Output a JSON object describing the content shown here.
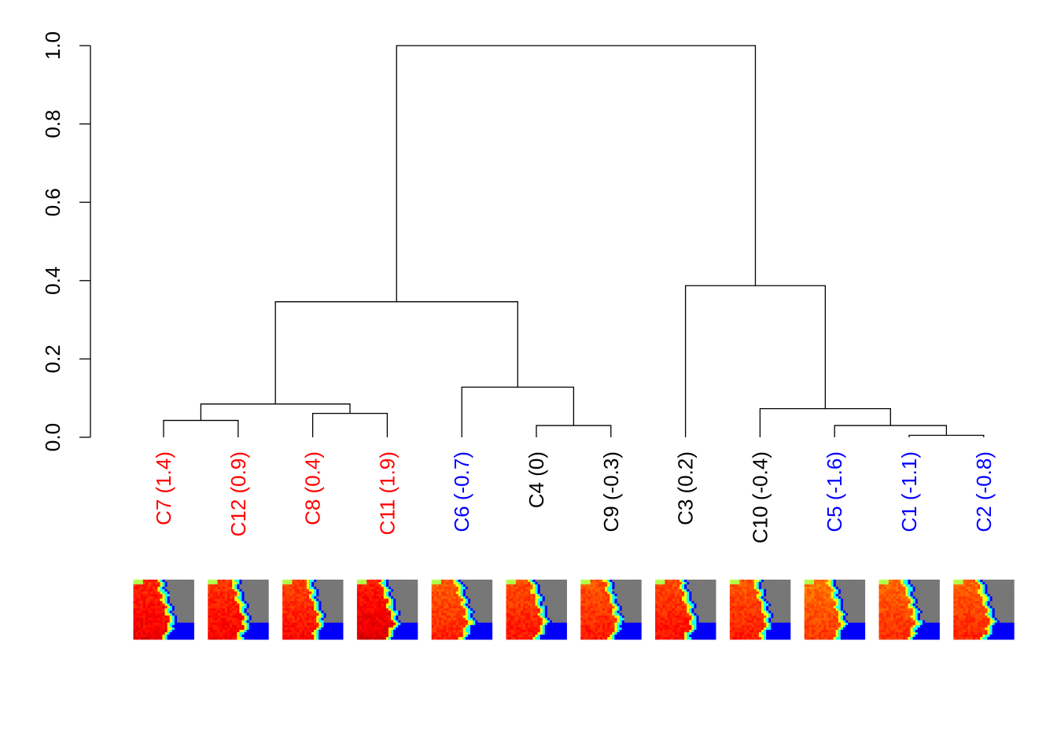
{
  "colors": {
    "red": "#ff0000",
    "blue": "#0000ff",
    "black": "#000000",
    "land": "#777777"
  },
  "axis": {
    "ticks": [
      {
        "value": 0.0,
        "label": "0.0"
      },
      {
        "value": 0.2,
        "label": "0.2"
      },
      {
        "value": 0.4,
        "label": "0.4"
      },
      {
        "value": 0.6,
        "label": "0.6"
      },
      {
        "value": 0.8,
        "label": "0.8"
      },
      {
        "value": 1.0,
        "label": "1.0"
      }
    ],
    "range": [
      0,
      1
    ]
  },
  "leaves": [
    {
      "id": "C7",
      "label": "C7 (1.4)",
      "color": "red",
      "score": 1.4
    },
    {
      "id": "C12",
      "label": "C12 (0.9)",
      "color": "red",
      "score": 0.9
    },
    {
      "id": "C8",
      "label": "C8 (0.4)",
      "color": "red",
      "score": 0.4
    },
    {
      "id": "C11",
      "label": "C11 (1.9)",
      "color": "red",
      "score": 1.9
    },
    {
      "id": "C6",
      "label": "C6 (-0.7)",
      "color": "blue",
      "score": -0.7
    },
    {
      "id": "C4",
      "label": "C4 (0)",
      "color": "black",
      "score": 0
    },
    {
      "id": "C9",
      "label": "C9 (-0.3)",
      "color": "black",
      "score": -0.3
    },
    {
      "id": "C3",
      "label": "C3 (0.2)",
      "color": "black",
      "score": 0.2
    },
    {
      "id": "C10",
      "label": "C10 (-0.4)",
      "color": "black",
      "score": -0.4
    },
    {
      "id": "C5",
      "label": "C5 (-1.6)",
      "color": "blue",
      "score": -1.6
    },
    {
      "id": "C1",
      "label": "C1 (-1.1)",
      "color": "blue",
      "score": -1.1
    },
    {
      "id": "C2",
      "label": "C2 (-0.8)",
      "color": "blue",
      "score": -0.8
    }
  ],
  "merges": [
    {
      "a": "C7",
      "b": "C12",
      "height": 0.043
    },
    {
      "a": "C8",
      "b": "C11",
      "height": 0.061
    },
    {
      "a": "m1",
      "b": "m2",
      "height": 0.085
    },
    {
      "a": "C4",
      "b": "C9",
      "height": 0.03
    },
    {
      "a": "C6",
      "b": "m4",
      "height": 0.128
    },
    {
      "a": "m3",
      "b": "m5",
      "height": 0.346
    },
    {
      "a": "C1",
      "b": "C2",
      "height": 0.005
    },
    {
      "a": "C5",
      "b": "m7",
      "height": 0.03
    },
    {
      "a": "C10",
      "b": "m8",
      "height": 0.073
    },
    {
      "a": "C3",
      "b": "m9",
      "height": 0.387
    },
    {
      "a": "m6",
      "b": "m10",
      "height": 1.0
    }
  ]
}
